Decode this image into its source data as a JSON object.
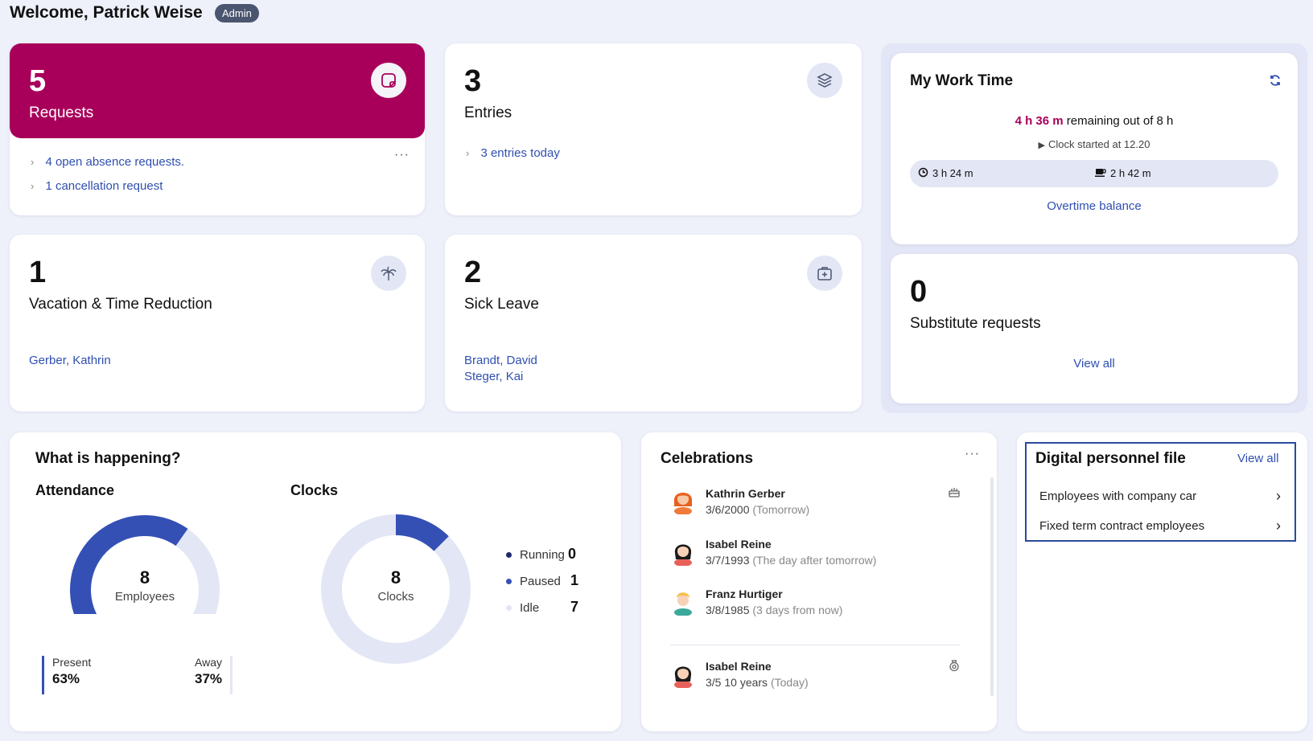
{
  "header": {
    "welcome": "Welcome, Patrick Weise",
    "role_badge": "Admin"
  },
  "requests": {
    "count": "5",
    "label": "Requests",
    "items": [
      "4 open absence requests.",
      "1 cancellation request"
    ],
    "accent": "#a8005a"
  },
  "entries": {
    "count": "3",
    "label": "Entries",
    "items": [
      "3 entries today"
    ]
  },
  "vacation": {
    "count": "1",
    "label": "Vacation & Time Reduction",
    "people": [
      "Gerber, Kathrin"
    ]
  },
  "sick_leave": {
    "count": "2",
    "label": "Sick Leave",
    "people": [
      "Brandt, David",
      "Steger, Kai"
    ]
  },
  "work_time": {
    "title": "My Work Time",
    "remaining": "4 h 36 m",
    "remaining_suffix": " remaining out of 8 h",
    "clock_started": "Clock started at 12.20",
    "worked": "3 h 24 m",
    "break": "2 h 42 m",
    "overtime_link": "Overtime balance"
  },
  "substitute": {
    "count": "0",
    "label": "Substitute requests",
    "view_all": "View all"
  },
  "happening": {
    "title": "What is happening?",
    "attendance": {
      "title": "Attendance",
      "total": "8",
      "total_label": "Employees",
      "present_label": "Present",
      "present_value": "63%",
      "away_label": "Away",
      "away_value": "37%",
      "present_fraction": 0.63
    },
    "clocks": {
      "title": "Clocks",
      "total": "8",
      "total_label": "Clocks",
      "legend": [
        {
          "label": "Running",
          "value": "0",
          "color": "#1e2a6e"
        },
        {
          "label": "Paused",
          "value": "1",
          "color": "#3450b5"
        },
        {
          "label": "Idle",
          "value": "7",
          "color": "#e3e6f5"
        }
      ]
    }
  },
  "celebrations": {
    "title": "Celebrations",
    "items": [
      {
        "name": "Kathrin Gerber",
        "date": "3/6/2000",
        "relative": "(Tomorrow)",
        "icon": "birthday-cake-icon"
      },
      {
        "name": "Isabel Reine",
        "date": "3/7/1993",
        "relative": "(The day after tomorrow)",
        "icon": ""
      },
      {
        "name": "Franz Hurtiger",
        "date": "3/8/1985",
        "relative": "(3 days from now)",
        "icon": ""
      },
      {
        "name": "Isabel Reine",
        "date": "3/5 10 years",
        "relative": "(Today)",
        "icon": "anniversary-medal-icon"
      }
    ]
  },
  "personnel_file": {
    "title": "Digital personnel file",
    "view_all": "View all",
    "items": [
      "Employees with company car",
      "Fixed term contract employees"
    ]
  }
}
